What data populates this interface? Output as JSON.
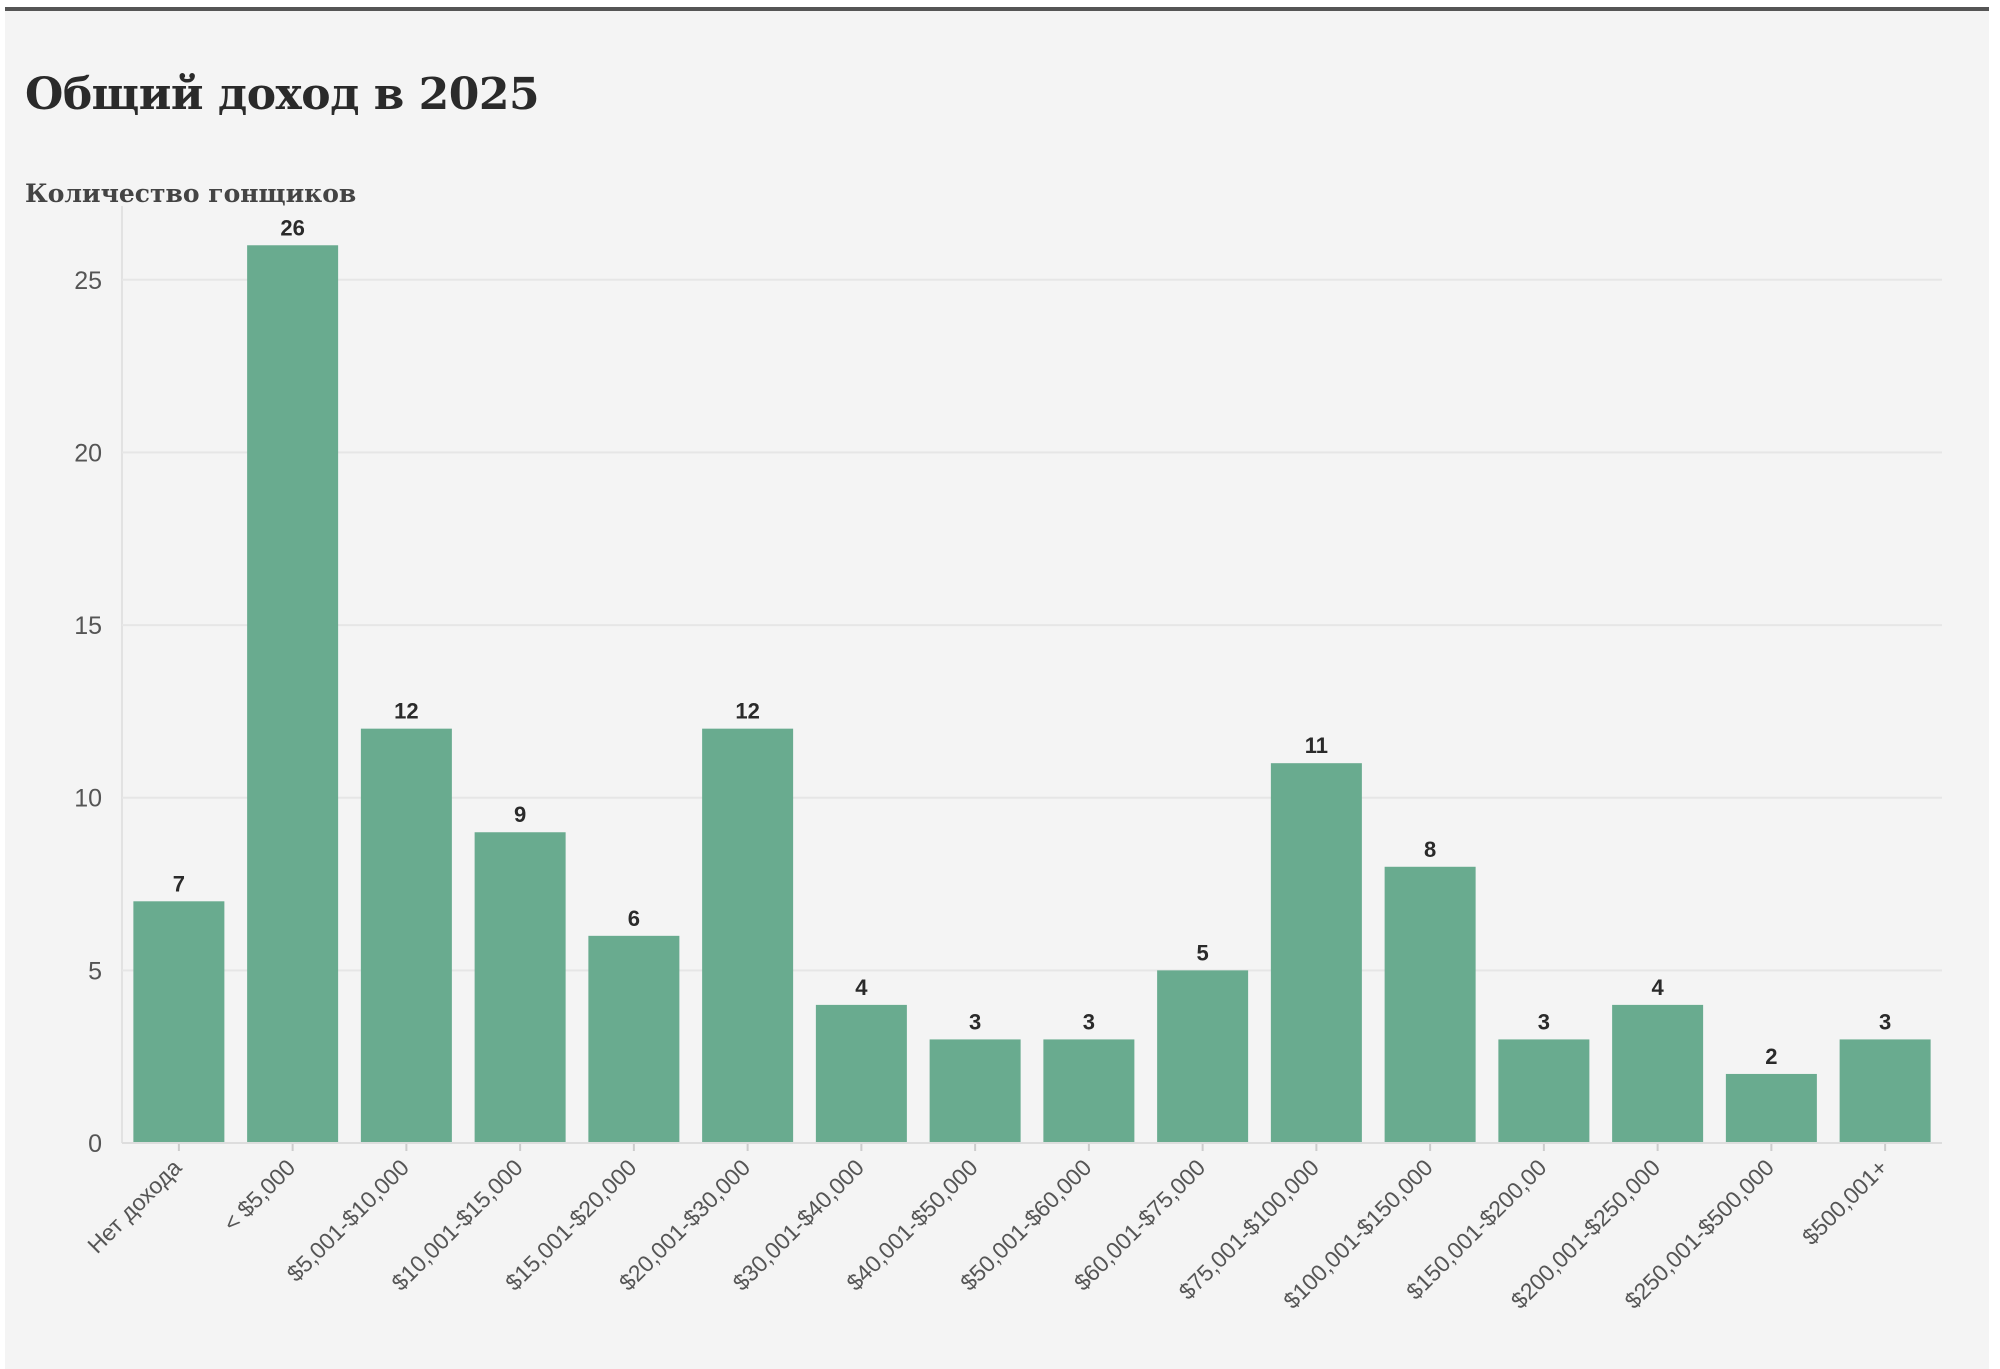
{
  "header": {
    "title": "Общий доход в 2025",
    "ylabel": "Количество гонщиков"
  },
  "colors": {
    "bar": "#69ab8f",
    "grid": "#e6e6e6",
    "background": "#f4f4f4",
    "top_rule": "#555555"
  },
  "chart_data": {
    "type": "bar",
    "title": "Общий доход в 2025",
    "ylabel": "Количество гонщиков",
    "xlabel": "",
    "categories": [
      "Нет дохода",
      "< $5,000",
      "$5,001-$10,000",
      "$10,001-$15,000",
      "$15,001-$20,000",
      "$20,001-$30,000",
      "$30,001-$40,000",
      "$40,001-$50,000",
      "$50,001-$60,000",
      "$60,001-$75,000",
      "$75,001-$100,000",
      "$100,001-$150,000",
      "$150,001-$200,00",
      "$200,001-$250,000",
      "$250,001-$500,000",
      "$500,001+"
    ],
    "values": [
      7,
      26,
      12,
      9,
      6,
      12,
      4,
      3,
      3,
      5,
      11,
      8,
      3,
      4,
      2,
      3
    ],
    "yticks": [
      0,
      5,
      10,
      15,
      20,
      25
    ],
    "ylim": [
      0,
      26.5
    ],
    "grid": true,
    "data_labels": true
  }
}
